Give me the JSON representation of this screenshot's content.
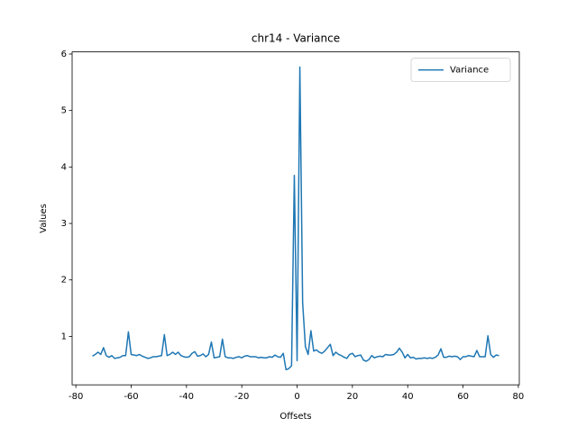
{
  "chart_data": {
    "type": "line",
    "title": "chr14 - Variance",
    "x_label": "Offsets",
    "y_label": "Values",
    "x": [
      -74,
      -73,
      -72,
      -71,
      -70,
      -69,
      -68,
      -67,
      -66,
      -65,
      -64,
      -63,
      -62,
      -61,
      -60,
      -59,
      -58,
      -57,
      -56,
      -55,
      -54,
      -53,
      -52,
      -51,
      -50,
      -49,
      -48,
      -47,
      -46,
      -45,
      -44,
      -43,
      -42,
      -41,
      -40,
      -39,
      -38,
      -37,
      -36,
      -35,
      -34,
      -33,
      -32,
      -31,
      -30,
      -29,
      -28,
      -27,
      -26,
      -25,
      -24,
      -23,
      -22,
      -21,
      -20,
      -19,
      -18,
      -17,
      -16,
      -15,
      -14,
      -13,
      -12,
      -11,
      -10,
      -9,
      -8,
      -7,
      -6,
      -5,
      -4,
      -3,
      -2,
      -1,
      0,
      1,
      2,
      3,
      4,
      5,
      6,
      7,
      8,
      9,
      10,
      11,
      12,
      13,
      14,
      15,
      16,
      17,
      18,
      19,
      20,
      21,
      22,
      23,
      24,
      25,
      26,
      27,
      28,
      29,
      30,
      31,
      32,
      33,
      34,
      35,
      36,
      37,
      38,
      39,
      40,
      41,
      42,
      43,
      44,
      45,
      46,
      47,
      48,
      49,
      50,
      51,
      52,
      53,
      54,
      55,
      56,
      57,
      58,
      59,
      60,
      61,
      62,
      63,
      64,
      65,
      66,
      67,
      68,
      69,
      70,
      71,
      72,
      73
    ],
    "series": [
      {
        "name": "Variance",
        "color": "#1f77b4",
        "values": [
          0.65,
          0.68,
          0.72,
          0.68,
          0.8,
          0.66,
          0.63,
          0.66,
          0.61,
          0.62,
          0.63,
          0.66,
          0.66,
          1.08,
          0.68,
          0.67,
          0.66,
          0.68,
          0.65,
          0.63,
          0.61,
          0.62,
          0.64,
          0.64,
          0.65,
          0.66,
          1.03,
          0.66,
          0.68,
          0.72,
          0.68,
          0.72,
          0.66,
          0.64,
          0.63,
          0.64,
          0.7,
          0.73,
          0.65,
          0.66,
          0.69,
          0.64,
          0.68,
          0.9,
          0.62,
          0.63,
          0.64,
          0.95,
          0.64,
          0.62,
          0.62,
          0.61,
          0.63,
          0.64,
          0.62,
          0.65,
          0.66,
          0.64,
          0.64,
          0.64,
          0.62,
          0.63,
          0.62,
          0.62,
          0.64,
          0.63,
          0.67,
          0.64,
          0.63,
          0.7,
          0.41,
          0.43,
          0.48,
          3.85,
          0.57,
          5.77,
          1.6,
          0.82,
          0.68,
          1.1,
          0.74,
          0.76,
          0.72,
          0.7,
          0.74,
          0.8,
          0.86,
          0.66,
          0.72,
          0.68,
          0.66,
          0.63,
          0.61,
          0.68,
          0.7,
          0.64,
          0.66,
          0.67,
          0.58,
          0.56,
          0.59,
          0.66,
          0.62,
          0.64,
          0.65,
          0.64,
          0.68,
          0.67,
          0.67,
          0.68,
          0.72,
          0.79,
          0.72,
          0.62,
          0.68,
          0.62,
          0.63,
          0.6,
          0.61,
          0.61,
          0.62,
          0.61,
          0.62,
          0.61,
          0.63,
          0.67,
          0.78,
          0.63,
          0.63,
          0.65,
          0.64,
          0.65,
          0.64,
          0.59,
          0.64,
          0.64,
          0.66,
          0.65,
          0.64,
          0.75,
          0.64,
          0.64,
          0.64,
          1.01,
          0.68,
          0.63,
          0.67,
          0.66
        ]
      }
    ],
    "xlim": [
      -81.35,
      80.35
    ],
    "ylim": [
      0.142,
      6.038
    ],
    "xticks": [
      -80,
      -60,
      -40,
      -20,
      0,
      20,
      40,
      60,
      80
    ],
    "yticks": [
      1,
      2,
      3,
      4,
      5,
      6
    ],
    "legend": "upper right"
  }
}
